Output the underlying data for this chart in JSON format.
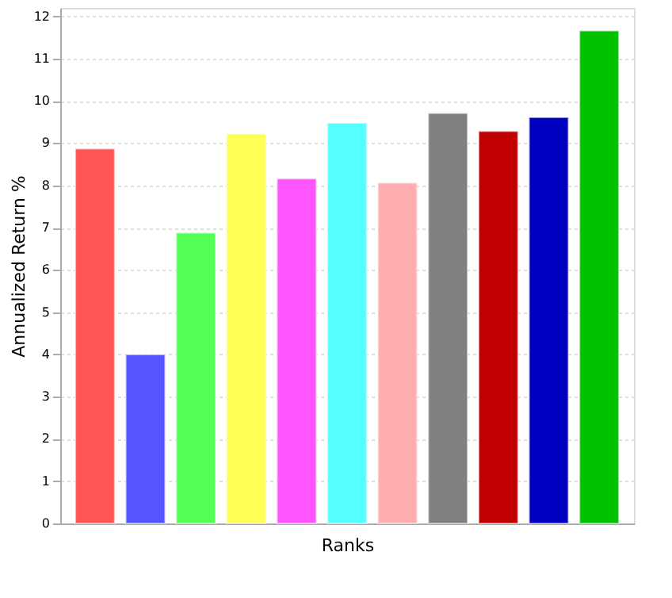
{
  "chart_data": {
    "type": "bar",
    "xlabel": "Ranks",
    "ylabel": "Annualized Return %",
    "categories": [
      null,
      null,
      null,
      null,
      null,
      null,
      null,
      null,
      null,
      null,
      null
    ],
    "values": [
      8.87,
      4.0,
      6.88,
      9.22,
      8.16,
      9.48,
      8.06,
      9.71,
      9.28,
      9.61,
      11.66
    ],
    "colors": [
      "#ff5555",
      "#5555ff",
      "#55ff55",
      "#ffff55",
      "#ff55ff",
      "#55ffff",
      "#ffafaf",
      "#808080",
      "#c00000",
      "#0000c0",
      "#00c000"
    ],
    "ylim": [
      0,
      12.2
    ],
    "yticks": [
      0,
      1,
      2,
      3,
      4,
      5,
      6,
      7,
      8,
      9,
      10,
      11,
      12
    ],
    "grid": "y",
    "tick_labels": "y"
  }
}
